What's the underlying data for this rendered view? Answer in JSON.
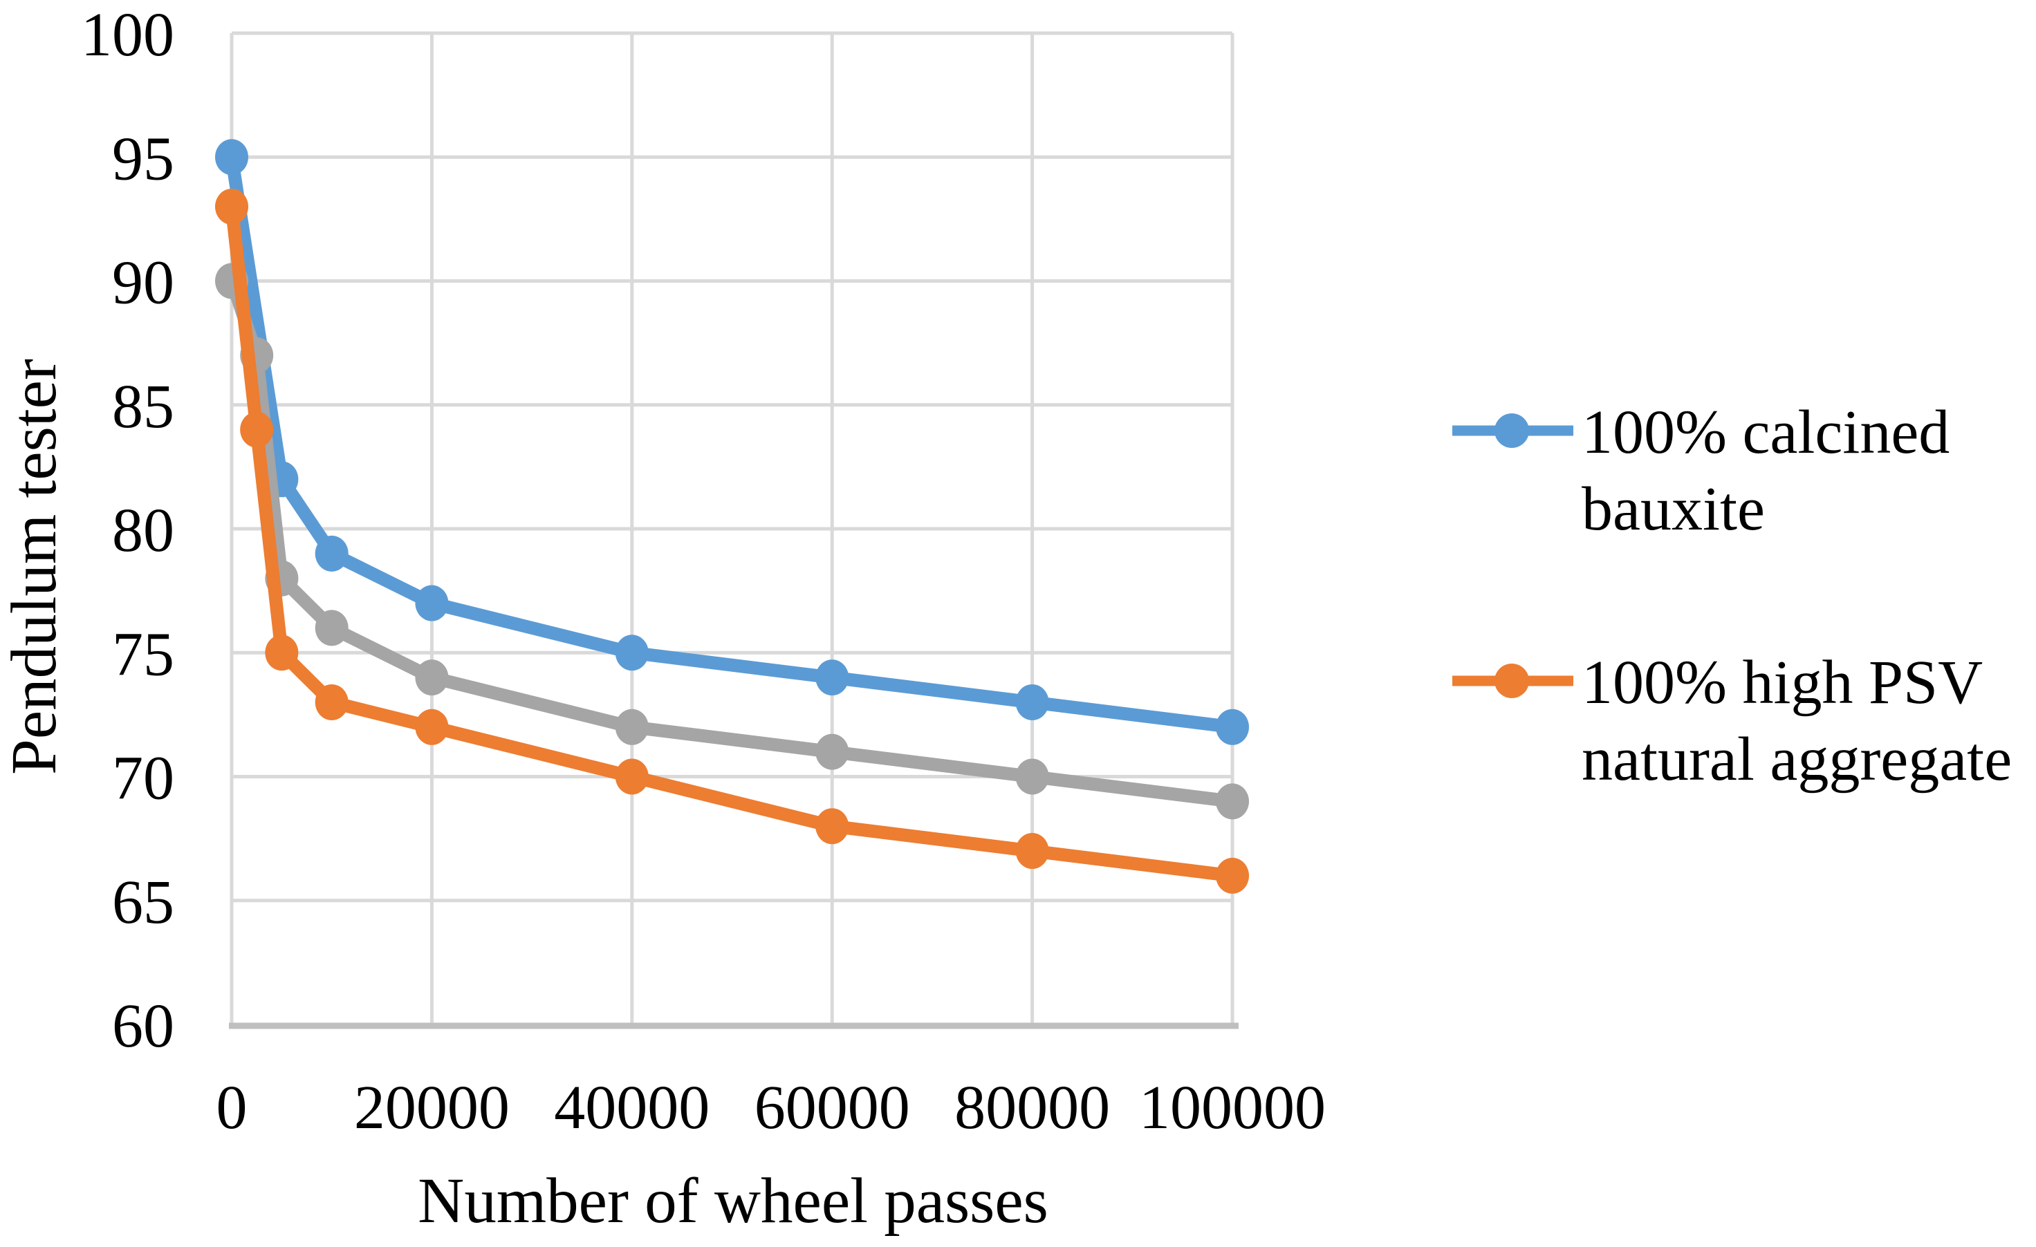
{
  "page": {
    "background": "#FFFFFF"
  },
  "chart_data": {
    "type": "line",
    "title": "",
    "xlabel": "Number of wheel passes",
    "ylabel": "Pendulum tester",
    "xlim": [
      0,
      100000
    ],
    "ylim": [
      60,
      100
    ],
    "x_ticks": [
      0,
      20000,
      40000,
      60000,
      80000,
      100000
    ],
    "y_ticks": [
      60,
      65,
      70,
      75,
      80,
      85,
      90,
      95,
      100
    ],
    "grid": true,
    "legend_position": "right",
    "colors": {
      "gridline": "#D9D9D9",
      "axis_line": "#BFBFBF",
      "text": "#000000",
      "blue": "#5B9BD5",
      "gray": "#A5A5A5",
      "orange": "#ED7D31"
    },
    "series": [
      {
        "name": "100% calcined bauxite",
        "color": "#5B9BD5",
        "legend_visible": true,
        "points": [
          [
            0,
            95
          ],
          [
            5000,
            82
          ],
          [
            10000,
            79
          ],
          [
            20000,
            77
          ],
          [
            40000,
            75
          ],
          [
            60000,
            74
          ],
          [
            80000,
            73
          ],
          [
            100000,
            72
          ]
        ]
      },
      {
        "name": "",
        "color": "#A5A5A5",
        "legend_visible": false,
        "points": [
          [
            0,
            90
          ],
          [
            2500,
            87
          ],
          [
            5000,
            78
          ],
          [
            10000,
            76
          ],
          [
            20000,
            74
          ],
          [
            40000,
            72
          ],
          [
            60000,
            71
          ],
          [
            80000,
            70
          ],
          [
            100000,
            69
          ]
        ]
      },
      {
        "name": "100% high PSV natural aggregate",
        "color": "#ED7D31",
        "legend_visible": true,
        "points": [
          [
            0,
            93
          ],
          [
            2500,
            84
          ],
          [
            5000,
            75
          ],
          [
            10000,
            73
          ],
          [
            20000,
            72
          ],
          [
            40000,
            70
          ],
          [
            60000,
            68
          ],
          [
            80000,
            67
          ],
          [
            100000,
            66
          ]
        ]
      }
    ],
    "legend": {
      "entries": [
        {
          "label_lines": [
            "100% calcined",
            "bauxite"
          ],
          "color": "#5B9BD5"
        },
        {
          "label_lines": [
            "100% high PSV",
            "natural aggregate"
          ],
          "color": "#ED7D31"
        }
      ]
    }
  }
}
